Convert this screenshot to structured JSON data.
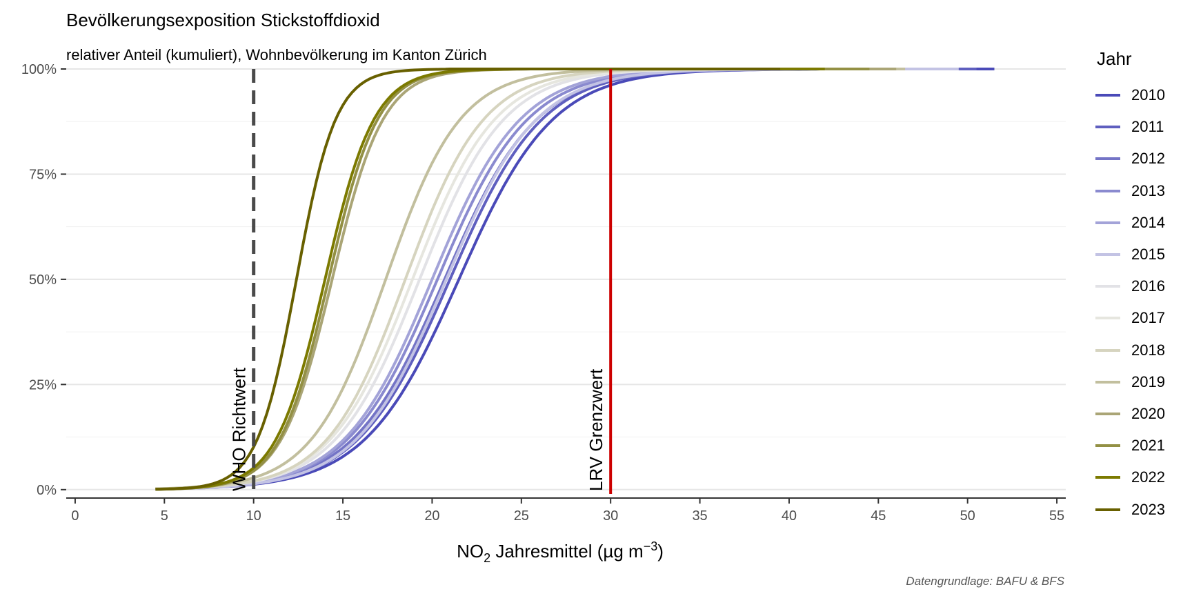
{
  "title": "Bevölkerungsexposition Stickstoffdioxid",
  "subtitle": "relativer Anteil (kumuliert), Wohnbevölkerung im Kanton Zürich",
  "caption": "Datengrundlage: BAFU & BFS",
  "legend_title": "Jahr",
  "chart_data": {
    "type": "line",
    "xlabel": "NO₂ Jahresmittel (µg m⁻³)",
    "xlim": [
      -0.5,
      55.5
    ],
    "ylim": [
      -0.02,
      1.0
    ],
    "x_ticks": [
      0,
      5,
      10,
      15,
      20,
      25,
      30,
      35,
      40,
      45,
      50,
      55
    ],
    "y_ticks": [
      0,
      0.25,
      0.5,
      0.75,
      1.0
    ],
    "y_tick_labels": [
      "0%",
      "25%",
      "50%",
      "75%",
      "100%"
    ],
    "grid": true,
    "legend_position": "right",
    "reference_lines": [
      {
        "x": 10,
        "label": "WHO Richtwert",
        "color": "#4a4a4a",
        "style": "dashed"
      },
      {
        "x": 30,
        "label": "LRV Grenzwert",
        "color": "#cc0000",
        "style": "solid"
      }
    ],
    "series": [
      {
        "name": "2010",
        "color": "#4a4ab8",
        "median": 21.5,
        "spread": 4.8,
        "xmax": 51.5
      },
      {
        "name": "2011",
        "color": "#5f5fbf",
        "median": 21.0,
        "spread": 4.7,
        "xmax": 50.5
      },
      {
        "name": "2012",
        "color": "#7474c6",
        "median": 20.7,
        "spread": 4.7,
        "xmax": 49.0
      },
      {
        "name": "2013",
        "color": "#8a8acf",
        "median": 20.3,
        "spread": 4.6,
        "xmax": 48.0
      },
      {
        "name": "2014",
        "color": "#a3a3d8",
        "median": 20.0,
        "spread": 4.5,
        "xmax": 47.0
      },
      {
        "name": "2015",
        "color": "#c3c3e4",
        "median": 20.8,
        "spread": 4.6,
        "xmax": 49.5
      },
      {
        "name": "2016",
        "color": "#e2e2e6",
        "median": 19.3,
        "spread": 4.3,
        "xmax": 46.0
      },
      {
        "name": "2017",
        "color": "#e6e6df",
        "median": 18.9,
        "spread": 4.2,
        "xmax": 45.5
      },
      {
        "name": "2018",
        "color": "#d6d4bf",
        "median": 18.5,
        "spread": 4.0,
        "xmax": 45.0
      },
      {
        "name": "2019",
        "color": "#c2bf9e",
        "median": 17.4,
        "spread": 3.8,
        "xmax": 46.5
      },
      {
        "name": "2020",
        "color": "#aaa576",
        "median": 14.4,
        "spread": 2.6,
        "xmax": 46.0
      },
      {
        "name": "2021",
        "color": "#939044",
        "median": 14.2,
        "spread": 2.5,
        "xmax": 44.5
      },
      {
        "name": "2022",
        "color": "#7c7a00",
        "median": 14.0,
        "spread": 2.5,
        "xmax": 42.0
      },
      {
        "name": "2023",
        "color": "#686000",
        "median": 12.4,
        "spread": 2.0,
        "xmax": 39.5
      }
    ]
  }
}
